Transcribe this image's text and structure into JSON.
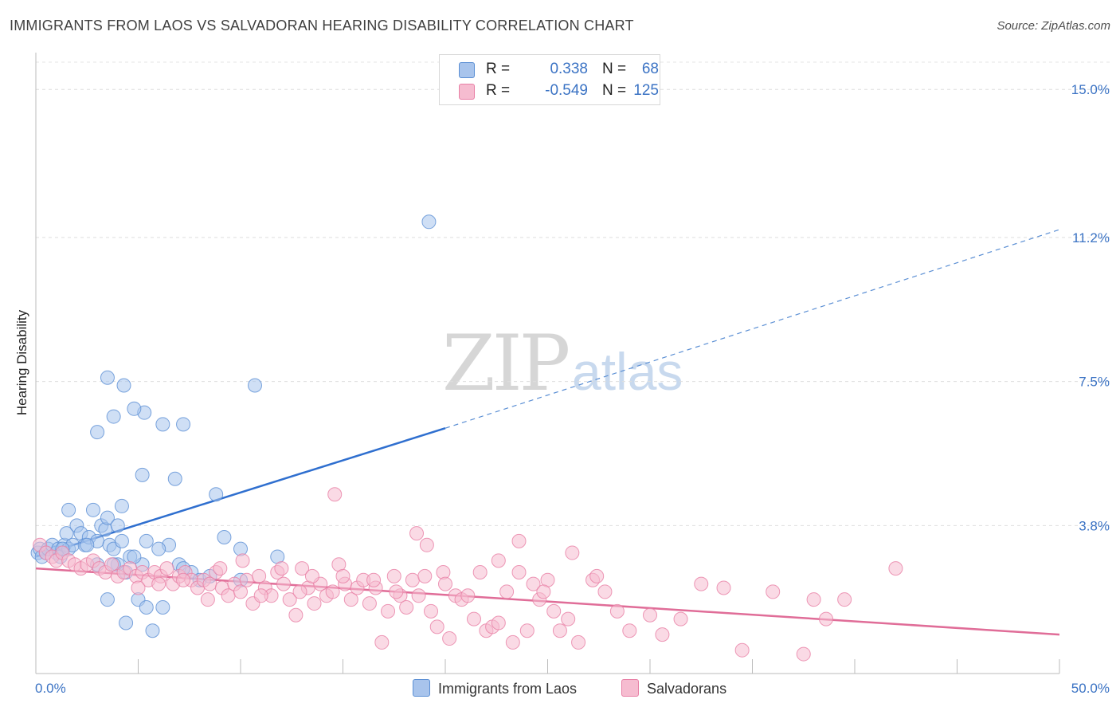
{
  "title": "IMMIGRANTS FROM LAOS VS SALVADORAN HEARING DISABILITY CORRELATION CHART",
  "source": "Source: ZipAtlas.com",
  "watermark": {
    "zip": "ZIP",
    "atlas": "atlas"
  },
  "legend": {
    "rows": [
      {
        "r_label": "R =",
        "r_value": "0.338",
        "n_label": "N =",
        "n_value": "68",
        "color": "#a8c4ec",
        "stroke": "#5b8fd4"
      },
      {
        "r_label": "R =",
        "r_value": "-0.549",
        "n_label": "N =",
        "n_value": "125",
        "color": "#f6bcd0",
        "stroke": "#e87fa5"
      }
    ]
  },
  "bottom_legend": [
    {
      "label": "Immigrants from Laos",
      "color": "#a8c4ec"
    },
    {
      "label": "Salvadorans",
      "color": "#f6bcd0"
    }
  ],
  "chart_data": {
    "type": "scatter",
    "title": "IMMIGRANTS FROM LAOS VS SALVADORAN HEARING DISABILITY CORRELATION CHART",
    "xlabel": "",
    "ylabel": "Hearing Disability",
    "xlim": [
      0,
      50
    ],
    "ylim": [
      0,
      15.7
    ],
    "x_tick_labels": [
      "0.0%",
      "50.0%"
    ],
    "y_ticks": [
      3.8,
      7.5,
      11.2,
      15.0
    ],
    "y_tick_labels": [
      "3.8%",
      "7.5%",
      "11.2%",
      "15.0%"
    ],
    "grid": true,
    "legend_position": "top-center",
    "series": [
      {
        "name": "Immigrants from Laos",
        "color": "#5b8fd4",
        "fill": "#a8c4ec",
        "trend": {
          "x0": 0,
          "y0": 3.0,
          "x1": 20,
          "y1": 6.3,
          "x_dash_end": 50,
          "y_dash_end": 11.4
        },
        "points": [
          [
            0.1,
            3.1
          ],
          [
            0.2,
            3.2
          ],
          [
            0.3,
            3.0
          ],
          [
            0.5,
            3.1
          ],
          [
            0.6,
            3.2
          ],
          [
            0.8,
            3.3
          ],
          [
            1.0,
            3.1
          ],
          [
            1.1,
            3.2
          ],
          [
            1.2,
            3.0
          ],
          [
            1.4,
            3.3
          ],
          [
            1.6,
            3.2
          ],
          [
            1.8,
            3.3
          ],
          [
            1.5,
            3.6
          ],
          [
            2.0,
            3.8
          ],
          [
            2.2,
            3.6
          ],
          [
            2.4,
            3.3
          ],
          [
            2.6,
            3.5
          ],
          [
            3.0,
            3.4
          ],
          [
            3.2,
            3.8
          ],
          [
            3.4,
            3.7
          ],
          [
            3.6,
            3.3
          ],
          [
            3.8,
            3.2
          ],
          [
            4.2,
            3.4
          ],
          [
            3.5,
            4.0
          ],
          [
            2.8,
            4.2
          ],
          [
            1.6,
            4.2
          ],
          [
            4.0,
            2.8
          ],
          [
            3.0,
            2.8
          ],
          [
            3.8,
            2.8
          ],
          [
            4.6,
            3.0
          ],
          [
            5.4,
            3.4
          ],
          [
            6.5,
            3.3
          ],
          [
            7.0,
            2.8
          ],
          [
            6.0,
            3.2
          ],
          [
            4.4,
            2.6
          ],
          [
            5.2,
            2.8
          ],
          [
            7.6,
            2.6
          ],
          [
            8.0,
            2.4
          ],
          [
            4.0,
            3.8
          ],
          [
            4.8,
            3.0
          ],
          [
            5.0,
            1.9
          ],
          [
            5.4,
            1.7
          ],
          [
            6.2,
            1.7
          ],
          [
            4.4,
            1.3
          ],
          [
            3.5,
            1.9
          ],
          [
            5.7,
            1.1
          ],
          [
            7.2,
            2.7
          ],
          [
            8.5,
            2.5
          ],
          [
            10.0,
            2.4
          ],
          [
            11.8,
            3.0
          ],
          [
            9.2,
            3.5
          ],
          [
            8.8,
            4.6
          ],
          [
            6.8,
            5.0
          ],
          [
            5.2,
            5.1
          ],
          [
            4.2,
            4.3
          ],
          [
            3.0,
            6.2
          ],
          [
            3.8,
            6.6
          ],
          [
            5.3,
            6.7
          ],
          [
            4.8,
            6.8
          ],
          [
            6.2,
            6.4
          ],
          [
            7.2,
            6.4
          ],
          [
            3.5,
            7.6
          ],
          [
            4.3,
            7.4
          ],
          [
            10.7,
            7.4
          ],
          [
            19.2,
            11.6
          ],
          [
            10.0,
            3.2
          ],
          [
            1.3,
            3.2
          ],
          [
            2.5,
            3.3
          ]
        ]
      },
      {
        "name": "Salvadorans",
        "color": "#e87fa5",
        "fill": "#f6bcd0",
        "trend": {
          "x0": 0,
          "y0": 2.7,
          "x1": 50,
          "y1": 1.0
        },
        "points": [
          [
            0.2,
            3.3
          ],
          [
            0.5,
            3.1
          ],
          [
            0.8,
            3.0
          ],
          [
            1.0,
            2.9
          ],
          [
            1.3,
            3.1
          ],
          [
            1.6,
            2.9
          ],
          [
            1.9,
            2.8
          ],
          [
            2.2,
            2.7
          ],
          [
            2.5,
            2.8
          ],
          [
            2.8,
            2.9
          ],
          [
            3.1,
            2.7
          ],
          [
            3.4,
            2.6
          ],
          [
            3.7,
            2.8
          ],
          [
            4.0,
            2.5
          ],
          [
            4.3,
            2.6
          ],
          [
            4.6,
            2.7
          ],
          [
            4.9,
            2.5
          ],
          [
            5.2,
            2.6
          ],
          [
            5.5,
            2.4
          ],
          [
            5.8,
            2.6
          ],
          [
            6.1,
            2.5
          ],
          [
            6.4,
            2.7
          ],
          [
            6.7,
            2.3
          ],
          [
            7.0,
            2.5
          ],
          [
            7.3,
            2.6
          ],
          [
            7.6,
            2.4
          ],
          [
            7.9,
            2.2
          ],
          [
            8.2,
            2.4
          ],
          [
            8.5,
            2.3
          ],
          [
            8.8,
            2.6
          ],
          [
            9.1,
            2.2
          ],
          [
            9.4,
            2.0
          ],
          [
            9.7,
            2.3
          ],
          [
            10.0,
            2.1
          ],
          [
            10.3,
            2.4
          ],
          [
            10.6,
            1.8
          ],
          [
            10.9,
            2.5
          ],
          [
            11.2,
            2.2
          ],
          [
            11.5,
            2.0
          ],
          [
            11.8,
            2.6
          ],
          [
            12.1,
            2.3
          ],
          [
            12.4,
            1.9
          ],
          [
            12.7,
            1.5
          ],
          [
            13.0,
            2.7
          ],
          [
            13.3,
            2.2
          ],
          [
            13.6,
            1.8
          ],
          [
            13.9,
            2.3
          ],
          [
            14.2,
            2.0
          ],
          [
            14.5,
            2.1
          ],
          [
            14.8,
            2.8
          ],
          [
            15.1,
            2.3
          ],
          [
            15.4,
            1.9
          ],
          [
            15.7,
            2.2
          ],
          [
            16.0,
            2.4
          ],
          [
            16.3,
            1.8
          ],
          [
            16.6,
            2.2
          ],
          [
            16.9,
            0.8
          ],
          [
            17.2,
            1.6
          ],
          [
            17.5,
            2.5
          ],
          [
            17.8,
            2.0
          ],
          [
            18.1,
            1.7
          ],
          [
            18.4,
            2.4
          ],
          [
            18.7,
            2.0
          ],
          [
            19.0,
            2.5
          ],
          [
            19.3,
            1.6
          ],
          [
            19.6,
            1.2
          ],
          [
            19.9,
            2.6
          ],
          [
            20.2,
            0.9
          ],
          [
            20.5,
            2.0
          ],
          [
            20.8,
            1.9
          ],
          [
            21.1,
            2.0
          ],
          [
            21.4,
            1.4
          ],
          [
            21.7,
            2.6
          ],
          [
            22.0,
            1.1
          ],
          [
            22.3,
            1.2
          ],
          [
            22.6,
            1.3
          ],
          [
            23.0,
            2.1
          ],
          [
            23.3,
            0.8
          ],
          [
            23.6,
            2.6
          ],
          [
            24.0,
            1.1
          ],
          [
            24.3,
            2.3
          ],
          [
            24.6,
            1.9
          ],
          [
            25.0,
            2.4
          ],
          [
            25.3,
            1.6
          ],
          [
            25.6,
            1.1
          ],
          [
            26.0,
            1.4
          ],
          [
            26.5,
            0.8
          ],
          [
            27.2,
            2.4
          ],
          [
            27.8,
            2.1
          ],
          [
            28.4,
            1.6
          ],
          [
            29.0,
            1.1
          ],
          [
            30.0,
            1.5
          ],
          [
            30.6,
            1.0
          ],
          [
            31.5,
            1.4
          ],
          [
            32.5,
            2.3
          ],
          [
            33.6,
            2.2
          ],
          [
            34.5,
            0.6
          ],
          [
            36.0,
            2.1
          ],
          [
            37.5,
            0.5
          ],
          [
            38.0,
            1.9
          ],
          [
            38.6,
            1.4
          ],
          [
            39.5,
            1.9
          ],
          [
            42.0,
            2.7
          ],
          [
            14.6,
            4.6
          ],
          [
            18.6,
            3.6
          ],
          [
            19.1,
            3.3
          ],
          [
            22.6,
            2.9
          ],
          [
            23.6,
            3.4
          ],
          [
            26.2,
            3.1
          ],
          [
            27.4,
            2.5
          ],
          [
            10.1,
            2.9
          ],
          [
            9.0,
            2.7
          ],
          [
            7.2,
            2.4
          ],
          [
            6.0,
            2.3
          ],
          [
            5.0,
            2.2
          ],
          [
            12.0,
            2.7
          ],
          [
            13.5,
            2.5
          ],
          [
            15.0,
            2.5
          ],
          [
            16.5,
            2.4
          ],
          [
            17.6,
            2.1
          ],
          [
            11.0,
            2.0
          ],
          [
            8.4,
            1.9
          ],
          [
            12.9,
            2.1
          ],
          [
            20.0,
            2.3
          ],
          [
            24.8,
            2.1
          ]
        ]
      }
    ]
  }
}
